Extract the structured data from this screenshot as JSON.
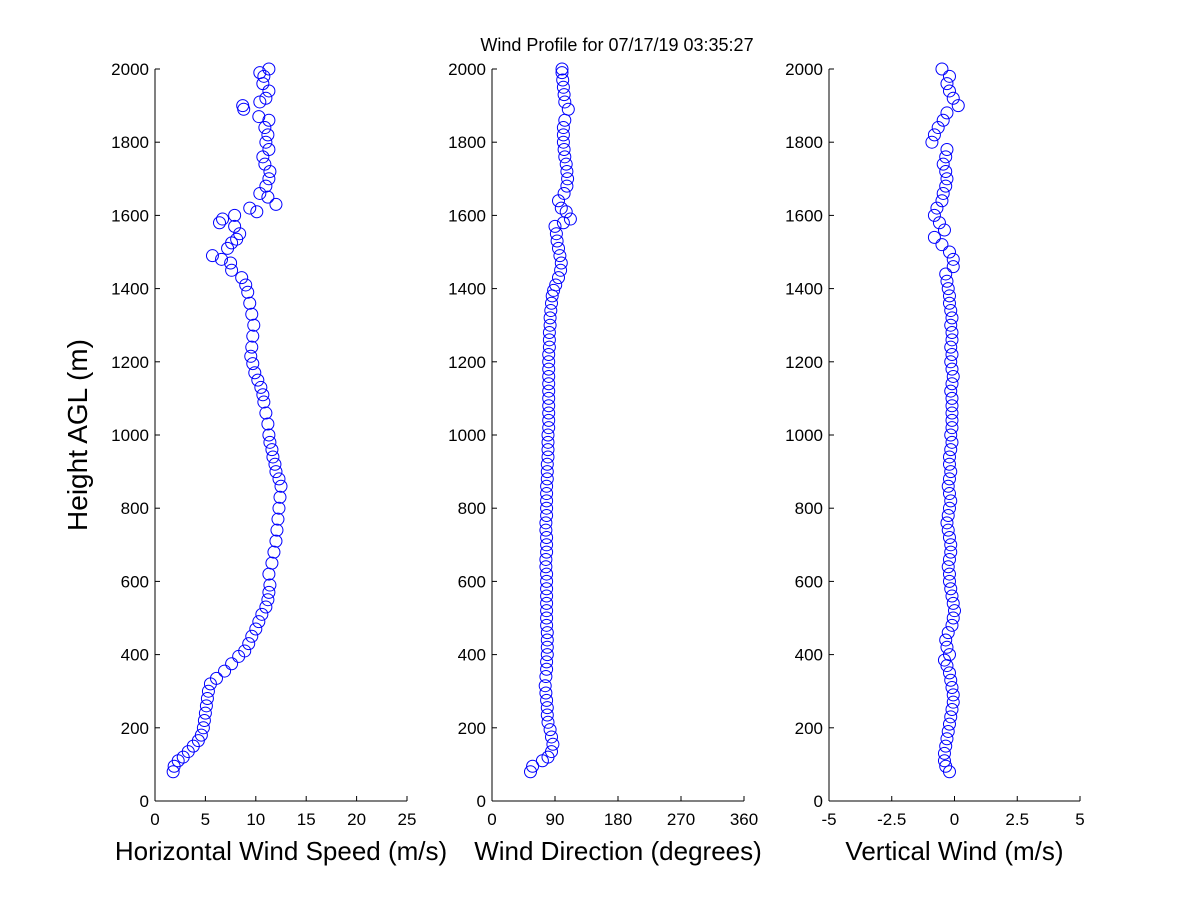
{
  "figure": {
    "title": "Wind Profile for  07/17/19 03:35:27",
    "ylabel": "Height AGL (m)"
  },
  "colors": {
    "marker": "#0000ff",
    "axes": "#000000",
    "background": "#ffffff"
  },
  "chart_data": [
    {
      "type": "scatter",
      "marker": "open-circle",
      "xlabel": "Horizontal Wind Speed (m/s)",
      "ylabel": "Height AGL (m)",
      "xlim": [
        0,
        25
      ],
      "ylim": [
        0,
        2000
      ],
      "xticks": [
        0,
        5,
        10,
        15,
        20,
        25
      ],
      "yticks": [
        0,
        200,
        400,
        600,
        800,
        1000,
        1200,
        1400,
        1600,
        1800,
        2000
      ],
      "grid": false,
      "legend": "none",
      "points": [
        {
          "x": 1.8,
          "y": 80
        },
        {
          "x": 1.9,
          "y": 95
        },
        {
          "x": 2.3,
          "y": 110
        },
        {
          "x": 2.8,
          "y": 120
        },
        {
          "x": 3.3,
          "y": 135
        },
        {
          "x": 3.8,
          "y": 150
        },
        {
          "x": 4.3,
          "y": 165
        },
        {
          "x": 4.6,
          "y": 180
        },
        {
          "x": 4.8,
          "y": 200
        },
        {
          "x": 4.9,
          "y": 220
        },
        {
          "x": 5.0,
          "y": 240
        },
        {
          "x": 5.1,
          "y": 260
        },
        {
          "x": 5.2,
          "y": 280
        },
        {
          "x": 5.3,
          "y": 300
        },
        {
          "x": 5.5,
          "y": 320
        },
        {
          "x": 6.1,
          "y": 335
        },
        {
          "x": 6.9,
          "y": 355
        },
        {
          "x": 7.6,
          "y": 375
        },
        {
          "x": 8.3,
          "y": 395
        },
        {
          "x": 8.9,
          "y": 410
        },
        {
          "x": 9.3,
          "y": 430
        },
        {
          "x": 9.6,
          "y": 450
        },
        {
          "x": 10.0,
          "y": 470
        },
        {
          "x": 10.3,
          "y": 490
        },
        {
          "x": 10.6,
          "y": 510
        },
        {
          "x": 11.0,
          "y": 530
        },
        {
          "x": 11.2,
          "y": 550
        },
        {
          "x": 11.3,
          "y": 570
        },
        {
          "x": 11.4,
          "y": 590
        },
        {
          "x": 11.3,
          "y": 620
        },
        {
          "x": 11.6,
          "y": 650
        },
        {
          "x": 11.8,
          "y": 680
        },
        {
          "x": 12.0,
          "y": 710
        },
        {
          "x": 12.1,
          "y": 740
        },
        {
          "x": 12.2,
          "y": 770
        },
        {
          "x": 12.3,
          "y": 800
        },
        {
          "x": 12.4,
          "y": 830
        },
        {
          "x": 12.5,
          "y": 860
        },
        {
          "x": 12.3,
          "y": 880
        },
        {
          "x": 12.0,
          "y": 900
        },
        {
          "x": 11.9,
          "y": 920
        },
        {
          "x": 11.7,
          "y": 940
        },
        {
          "x": 11.6,
          "y": 960
        },
        {
          "x": 11.4,
          "y": 980
        },
        {
          "x": 11.3,
          "y": 1000
        },
        {
          "x": 11.2,
          "y": 1030
        },
        {
          "x": 11.0,
          "y": 1060
        },
        {
          "x": 10.8,
          "y": 1090
        },
        {
          "x": 10.7,
          "y": 1110
        },
        {
          "x": 10.5,
          "y": 1130
        },
        {
          "x": 10.2,
          "y": 1150
        },
        {
          "x": 9.9,
          "y": 1170
        },
        {
          "x": 9.7,
          "y": 1195
        },
        {
          "x": 9.5,
          "y": 1215
        },
        {
          "x": 9.6,
          "y": 1240
        },
        {
          "x": 9.7,
          "y": 1270
        },
        {
          "x": 9.8,
          "y": 1300
        },
        {
          "x": 9.6,
          "y": 1330
        },
        {
          "x": 9.4,
          "y": 1360
        },
        {
          "x": 9.2,
          "y": 1390
        },
        {
          "x": 9.0,
          "y": 1410
        },
        {
          "x": 8.6,
          "y": 1430
        },
        {
          "x": 7.6,
          "y": 1450
        },
        {
          "x": 7.5,
          "y": 1470
        },
        {
          "x": 6.6,
          "y": 1480
        },
        {
          "x": 5.7,
          "y": 1490
        },
        {
          "x": 7.2,
          "y": 1510
        },
        {
          "x": 7.6,
          "y": 1525
        },
        {
          "x": 8.1,
          "y": 1535
        },
        {
          "x": 8.4,
          "y": 1550
        },
        {
          "x": 7.9,
          "y": 1570
        },
        {
          "x": 6.4,
          "y": 1580
        },
        {
          "x": 6.7,
          "y": 1590
        },
        {
          "x": 7.9,
          "y": 1600
        },
        {
          "x": 9.4,
          "y": 1620
        },
        {
          "x": 10.1,
          "y": 1610
        },
        {
          "x": 12.0,
          "y": 1630
        },
        {
          "x": 11.2,
          "y": 1650
        },
        {
          "x": 10.4,
          "y": 1660
        },
        {
          "x": 11.0,
          "y": 1680
        },
        {
          "x": 11.3,
          "y": 1700
        },
        {
          "x": 11.4,
          "y": 1720
        },
        {
          "x": 10.9,
          "y": 1740
        },
        {
          "x": 10.7,
          "y": 1760
        },
        {
          "x": 11.3,
          "y": 1780
        },
        {
          "x": 11.0,
          "y": 1800
        },
        {
          "x": 11.2,
          "y": 1820
        },
        {
          "x": 10.9,
          "y": 1840
        },
        {
          "x": 11.3,
          "y": 1860
        },
        {
          "x": 10.3,
          "y": 1870
        },
        {
          "x": 8.8,
          "y": 1890
        },
        {
          "x": 8.7,
          "y": 1900
        },
        {
          "x": 10.4,
          "y": 1910
        },
        {
          "x": 11.0,
          "y": 1920
        },
        {
          "x": 11.3,
          "y": 1940
        },
        {
          "x": 10.7,
          "y": 1960
        },
        {
          "x": 10.4,
          "y": 1990
        },
        {
          "x": 10.8,
          "y": 1980
        },
        {
          "x": 11.3,
          "y": 2000
        }
      ]
    },
    {
      "type": "scatter",
      "marker": "open-circle",
      "xlabel": "Wind Direction (degrees)",
      "xlim": [
        0,
        360
      ],
      "ylim": [
        0,
        2000
      ],
      "xticks": [
        0,
        90,
        180,
        270,
        360
      ],
      "yticks": [
        0,
        200,
        400,
        600,
        800,
        1000,
        1200,
        1400,
        1600,
        1800,
        2000
      ],
      "grid": false,
      "legend": "none",
      "points": [
        {
          "x": 55,
          "y": 80
        },
        {
          "x": 58,
          "y": 95
        },
        {
          "x": 72,
          "y": 110
        },
        {
          "x": 80,
          "y": 120
        },
        {
          "x": 85,
          "y": 135
        },
        {
          "x": 87,
          "y": 155
        },
        {
          "x": 85,
          "y": 175
        },
        {
          "x": 83,
          "y": 195
        },
        {
          "x": 80,
          "y": 215
        },
        {
          "x": 79,
          "y": 235
        },
        {
          "x": 79,
          "y": 255
        },
        {
          "x": 78,
          "y": 275
        },
        {
          "x": 77,
          "y": 295
        },
        {
          "x": 76,
          "y": 315
        },
        {
          "x": 77,
          "y": 340
        },
        {
          "x": 78,
          "y": 360
        },
        {
          "x": 78,
          "y": 380
        },
        {
          "x": 79,
          "y": 400
        },
        {
          "x": 79,
          "y": 420
        },
        {
          "x": 79,
          "y": 440
        },
        {
          "x": 79,
          "y": 460
        },
        {
          "x": 78,
          "y": 480
        },
        {
          "x": 78,
          "y": 500
        },
        {
          "x": 78,
          "y": 520
        },
        {
          "x": 78,
          "y": 540
        },
        {
          "x": 78,
          "y": 560
        },
        {
          "x": 78,
          "y": 580
        },
        {
          "x": 78,
          "y": 600
        },
        {
          "x": 78,
          "y": 620
        },
        {
          "x": 77,
          "y": 640
        },
        {
          "x": 77,
          "y": 660
        },
        {
          "x": 78,
          "y": 680
        },
        {
          "x": 78,
          "y": 700
        },
        {
          "x": 78,
          "y": 720
        },
        {
          "x": 77,
          "y": 740
        },
        {
          "x": 77,
          "y": 760
        },
        {
          "x": 78,
          "y": 780
        },
        {
          "x": 78,
          "y": 800
        },
        {
          "x": 78,
          "y": 820
        },
        {
          "x": 78,
          "y": 840
        },
        {
          "x": 78,
          "y": 860
        },
        {
          "x": 79,
          "y": 880
        },
        {
          "x": 79,
          "y": 900
        },
        {
          "x": 79,
          "y": 920
        },
        {
          "x": 80,
          "y": 940
        },
        {
          "x": 80,
          "y": 960
        },
        {
          "x": 80,
          "y": 980
        },
        {
          "x": 80,
          "y": 1000
        },
        {
          "x": 81,
          "y": 1020
        },
        {
          "x": 81,
          "y": 1040
        },
        {
          "x": 81,
          "y": 1060
        },
        {
          "x": 81,
          "y": 1080
        },
        {
          "x": 81,
          "y": 1100
        },
        {
          "x": 81,
          "y": 1120
        },
        {
          "x": 81,
          "y": 1140
        },
        {
          "x": 81,
          "y": 1160
        },
        {
          "x": 81,
          "y": 1180
        },
        {
          "x": 81,
          "y": 1200
        },
        {
          "x": 81,
          "y": 1220
        },
        {
          "x": 82,
          "y": 1240
        },
        {
          "x": 82,
          "y": 1260
        },
        {
          "x": 82,
          "y": 1280
        },
        {
          "x": 83,
          "y": 1300
        },
        {
          "x": 83,
          "y": 1320
        },
        {
          "x": 84,
          "y": 1340
        },
        {
          "x": 85,
          "y": 1360
        },
        {
          "x": 86,
          "y": 1380
        },
        {
          "x": 88,
          "y": 1395
        },
        {
          "x": 91,
          "y": 1410
        },
        {
          "x": 95,
          "y": 1430
        },
        {
          "x": 98,
          "y": 1450
        },
        {
          "x": 99,
          "y": 1470
        },
        {
          "x": 97,
          "y": 1490
        },
        {
          "x": 95,
          "y": 1510
        },
        {
          "x": 93,
          "y": 1530
        },
        {
          "x": 92,
          "y": 1550
        },
        {
          "x": 90,
          "y": 1570
        },
        {
          "x": 102,
          "y": 1580
        },
        {
          "x": 112,
          "y": 1590
        },
        {
          "x": 106,
          "y": 1610
        },
        {
          "x": 99,
          "y": 1620
        },
        {
          "x": 95,
          "y": 1640
        },
        {
          "x": 103,
          "y": 1660
        },
        {
          "x": 107,
          "y": 1680
        },
        {
          "x": 108,
          "y": 1700
        },
        {
          "x": 107,
          "y": 1720
        },
        {
          "x": 106,
          "y": 1740
        },
        {
          "x": 104,
          "y": 1760
        },
        {
          "x": 103,
          "y": 1780
        },
        {
          "x": 102,
          "y": 1800
        },
        {
          "x": 102,
          "y": 1820
        },
        {
          "x": 102,
          "y": 1840
        },
        {
          "x": 104,
          "y": 1860
        },
        {
          "x": 109,
          "y": 1890
        },
        {
          "x": 104,
          "y": 1910
        },
        {
          "x": 103,
          "y": 1930
        },
        {
          "x": 102,
          "y": 1950
        },
        {
          "x": 101,
          "y": 1970
        },
        {
          "x": 100,
          "y": 1990
        },
        {
          "x": 100,
          "y": 2000
        }
      ]
    },
    {
      "type": "scatter",
      "marker": "open-circle",
      "xlabel": "Vertical Wind (m/s)",
      "xlim": [
        -5,
        5
      ],
      "ylim": [
        0,
        2000
      ],
      "xticks": [
        -5,
        -2.5,
        0,
        2.5,
        5
      ],
      "yticks": [
        0,
        200,
        400,
        600,
        800,
        1000,
        1200,
        1400,
        1600,
        1800,
        2000
      ],
      "grid": false,
      "legend": "none",
      "points": [
        {
          "x": -0.2,
          "y": 80
        },
        {
          "x": -0.35,
          "y": 95
        },
        {
          "x": -0.4,
          "y": 110
        },
        {
          "x": -0.4,
          "y": 130
        },
        {
          "x": -0.35,
          "y": 150
        },
        {
          "x": -0.3,
          "y": 170
        },
        {
          "x": -0.25,
          "y": 190
        },
        {
          "x": -0.2,
          "y": 210
        },
        {
          "x": -0.15,
          "y": 230
        },
        {
          "x": -0.1,
          "y": 250
        },
        {
          "x": -0.05,
          "y": 270
        },
        {
          "x": -0.05,
          "y": 290
        },
        {
          "x": -0.1,
          "y": 310
        },
        {
          "x": -0.15,
          "y": 330
        },
        {
          "x": -0.2,
          "y": 350
        },
        {
          "x": -0.3,
          "y": 370
        },
        {
          "x": -0.4,
          "y": 385
        },
        {
          "x": -0.2,
          "y": 400
        },
        {
          "x": -0.3,
          "y": 420
        },
        {
          "x": -0.35,
          "y": 440
        },
        {
          "x": -0.25,
          "y": 460
        },
        {
          "x": -0.1,
          "y": 480
        },
        {
          "x": -0.05,
          "y": 500
        },
        {
          "x": 0.0,
          "y": 520
        },
        {
          "x": -0.05,
          "y": 540
        },
        {
          "x": -0.1,
          "y": 560
        },
        {
          "x": -0.15,
          "y": 580
        },
        {
          "x": -0.2,
          "y": 600
        },
        {
          "x": -0.2,
          "y": 620
        },
        {
          "x": -0.25,
          "y": 640
        },
        {
          "x": -0.2,
          "y": 660
        },
        {
          "x": -0.15,
          "y": 680
        },
        {
          "x": -0.15,
          "y": 700
        },
        {
          "x": -0.2,
          "y": 720
        },
        {
          "x": -0.25,
          "y": 740
        },
        {
          "x": -0.3,
          "y": 760
        },
        {
          "x": -0.25,
          "y": 780
        },
        {
          "x": -0.2,
          "y": 800
        },
        {
          "x": -0.15,
          "y": 820
        },
        {
          "x": -0.2,
          "y": 840
        },
        {
          "x": -0.25,
          "y": 860
        },
        {
          "x": -0.2,
          "y": 880
        },
        {
          "x": -0.15,
          "y": 900
        },
        {
          "x": -0.2,
          "y": 920
        },
        {
          "x": -0.2,
          "y": 940
        },
        {
          "x": -0.15,
          "y": 960
        },
        {
          "x": -0.1,
          "y": 980
        },
        {
          "x": -0.15,
          "y": 1000
        },
        {
          "x": -0.1,
          "y": 1020
        },
        {
          "x": -0.1,
          "y": 1040
        },
        {
          "x": -0.1,
          "y": 1060
        },
        {
          "x": -0.1,
          "y": 1080
        },
        {
          "x": -0.1,
          "y": 1100
        },
        {
          "x": -0.15,
          "y": 1120
        },
        {
          "x": -0.1,
          "y": 1140
        },
        {
          "x": -0.05,
          "y": 1160
        },
        {
          "x": -0.1,
          "y": 1180
        },
        {
          "x": -0.15,
          "y": 1200
        },
        {
          "x": -0.1,
          "y": 1220
        },
        {
          "x": -0.15,
          "y": 1240
        },
        {
          "x": -0.1,
          "y": 1260
        },
        {
          "x": -0.1,
          "y": 1280
        },
        {
          "x": -0.15,
          "y": 1300
        },
        {
          "x": -0.1,
          "y": 1320
        },
        {
          "x": -0.15,
          "y": 1340
        },
        {
          "x": -0.2,
          "y": 1360
        },
        {
          "x": -0.2,
          "y": 1380
        },
        {
          "x": -0.25,
          "y": 1400
        },
        {
          "x": -0.3,
          "y": 1420
        },
        {
          "x": -0.35,
          "y": 1440
        },
        {
          "x": -0.05,
          "y": 1460
        },
        {
          "x": -0.05,
          "y": 1480
        },
        {
          "x": -0.2,
          "y": 1500
        },
        {
          "x": -0.5,
          "y": 1520
        },
        {
          "x": -0.8,
          "y": 1540
        },
        {
          "x": -0.4,
          "y": 1560
        },
        {
          "x": -0.6,
          "y": 1580
        },
        {
          "x": -0.8,
          "y": 1600
        },
        {
          "x": -0.7,
          "y": 1620
        },
        {
          "x": -0.5,
          "y": 1640
        },
        {
          "x": -0.45,
          "y": 1660
        },
        {
          "x": -0.35,
          "y": 1680
        },
        {
          "x": -0.3,
          "y": 1700
        },
        {
          "x": -0.35,
          "y": 1720
        },
        {
          "x": -0.45,
          "y": 1740
        },
        {
          "x": -0.35,
          "y": 1760
        },
        {
          "x": -0.3,
          "y": 1780
        },
        {
          "x": -0.9,
          "y": 1800
        },
        {
          "x": -0.8,
          "y": 1820
        },
        {
          "x": -0.65,
          "y": 1840
        },
        {
          "x": -0.45,
          "y": 1860
        },
        {
          "x": -0.3,
          "y": 1880
        },
        {
          "x": 0.15,
          "y": 1900
        },
        {
          "x": -0.05,
          "y": 1920
        },
        {
          "x": -0.2,
          "y": 1940
        },
        {
          "x": -0.3,
          "y": 1960
        },
        {
          "x": -0.2,
          "y": 1980
        },
        {
          "x": -0.5,
          "y": 2000
        }
      ]
    }
  ]
}
